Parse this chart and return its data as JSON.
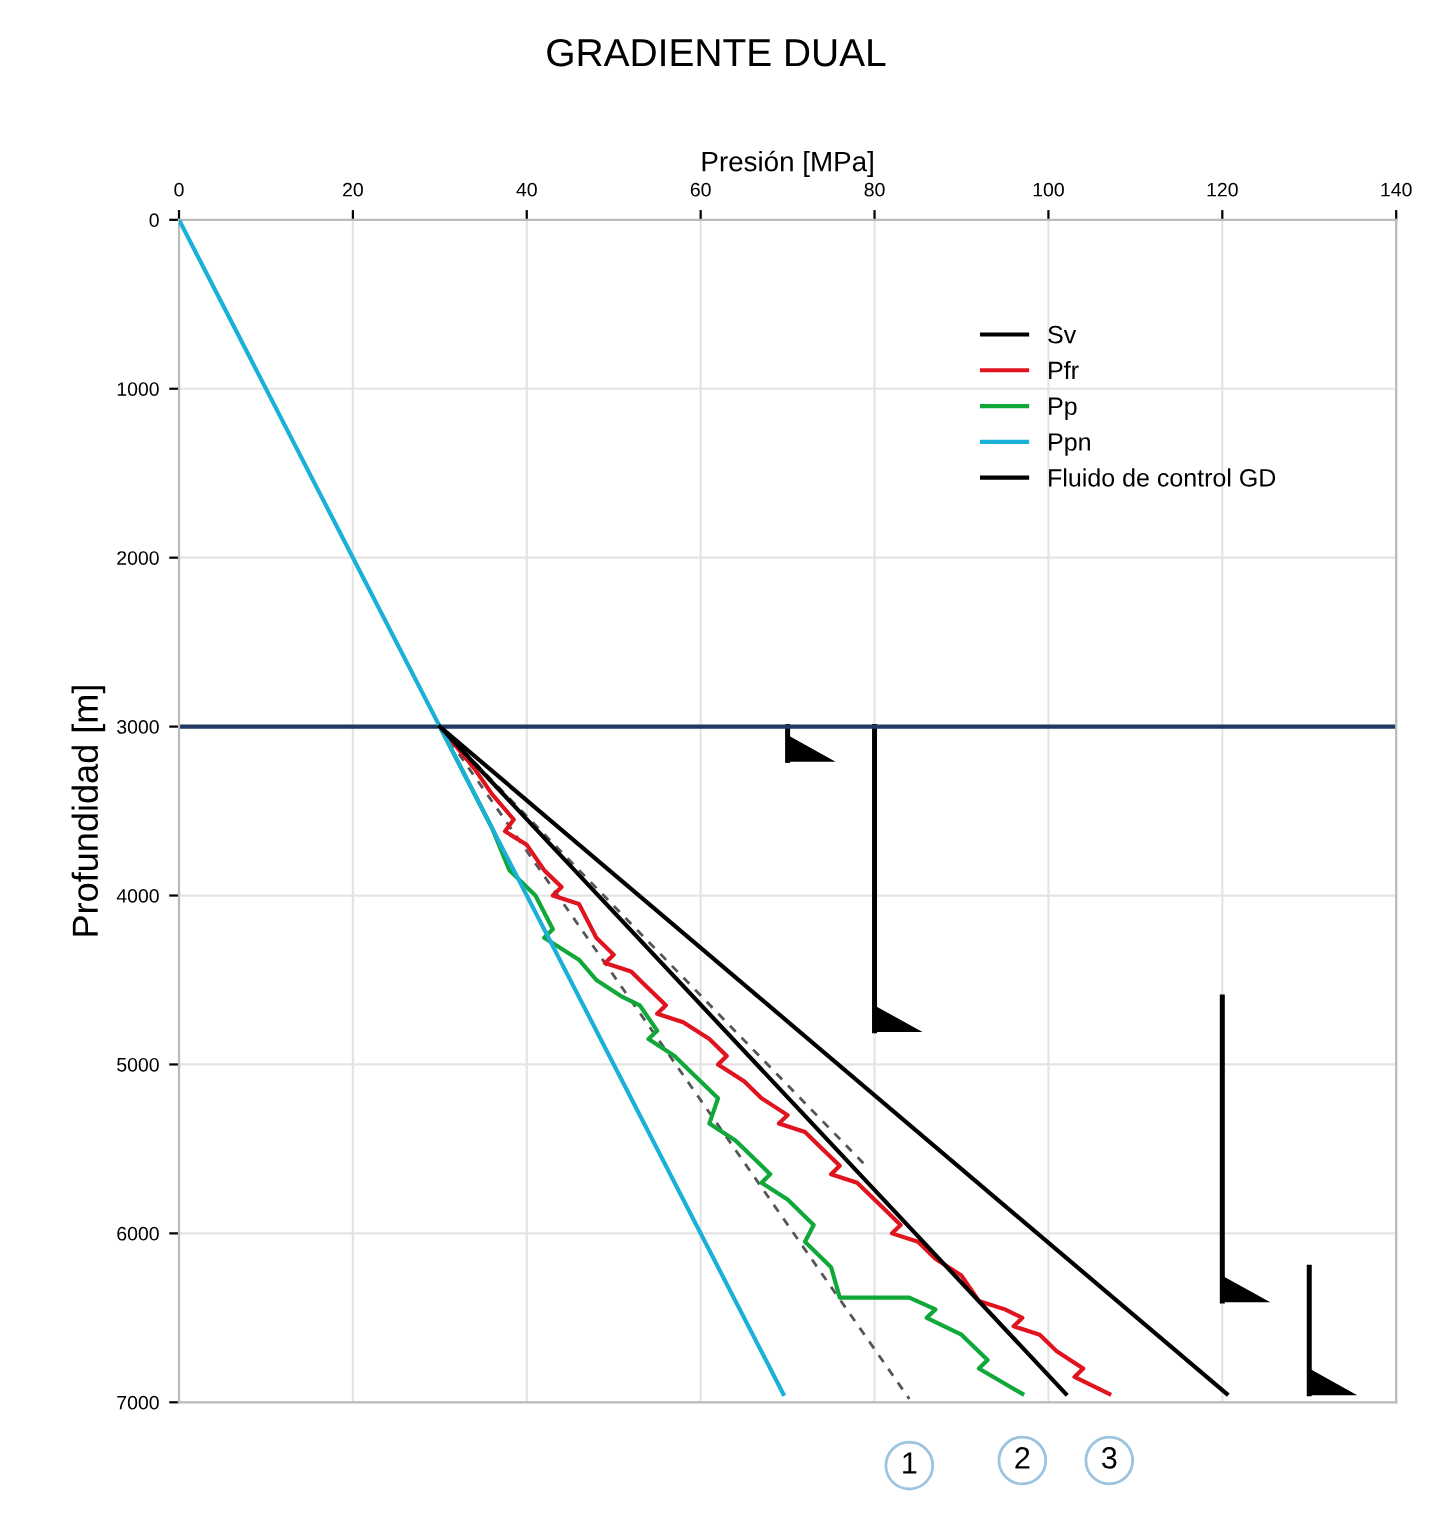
{
  "chart_data": {
    "type": "line",
    "title": "GRADIENTE DUAL",
    "xlabel": "Presión [MPa]",
    "ylabel": "Profundidad [m]",
    "xlim": [
      0,
      140
    ],
    "xticks": [
      0,
      20,
      40,
      60,
      80,
      100,
      120,
      140
    ],
    "ylim": [
      7000,
      0
    ],
    "yticks": [
      0,
      1000,
      2000,
      3000,
      4000,
      5000,
      6000,
      7000
    ],
    "grid": true,
    "legend": "top right",
    "marker": "none",
    "series": [
      {
        "name": "Sv",
        "color": "#000000",
        "x": [
          30,
          120.5
        ],
        "values": [
          3000,
          6950
        ]
      },
      {
        "name": "Pfr",
        "color": "#e0141e",
        "x": [
          30,
          34,
          36,
          38.5,
          37.5,
          40,
          42,
          44,
          43,
          46,
          48,
          50,
          49,
          52,
          54,
          56,
          55,
          58,
          61,
          63,
          62,
          65,
          67,
          70,
          69,
          72,
          74,
          76,
          75,
          78,
          81,
          83,
          82,
          85,
          87,
          90,
          92,
          95,
          97,
          96,
          99,
          101,
          104,
          103,
          107
        ],
        "values": [
          3000,
          3250,
          3400,
          3550,
          3620,
          3700,
          3850,
          3950,
          4000,
          4050,
          4250,
          4350,
          4400,
          4450,
          4550,
          4650,
          4700,
          4750,
          4850,
          4950,
          5000,
          5100,
          5200,
          5300,
          5350,
          5400,
          5500,
          5600,
          5650,
          5700,
          5850,
          5950,
          6000,
          6050,
          6150,
          6250,
          6400,
          6450,
          6500,
          6550,
          6600,
          6700,
          6800,
          6850,
          6950
        ]
      },
      {
        "name": "Pp",
        "color": "#10a838",
        "x": [
          30,
          33,
          36,
          38,
          41,
          43,
          42,
          46,
          48,
          51,
          53,
          55,
          54,
          57,
          59,
          62,
          61,
          64,
          66,
          68,
          67,
          70,
          73,
          72,
          75,
          76,
          84,
          87,
          86,
          90,
          93,
          92,
          97
        ],
        "values": [
          3000,
          3300,
          3600,
          3850,
          4000,
          4200,
          4250,
          4380,
          4500,
          4600,
          4650,
          4800,
          4850,
          4950,
          5050,
          5200,
          5350,
          5450,
          5550,
          5650,
          5700,
          5800,
          5950,
          6050,
          6200,
          6380,
          6380,
          6450,
          6500,
          6600,
          6750,
          6800,
          6950
        ]
      },
      {
        "name": "Ppn",
        "color": "#1ab0d8",
        "x": [
          0,
          69.5
        ],
        "values": [
          0,
          6950
        ]
      },
      {
        "name": "Fluido de control GD",
        "color": "#000000",
        "x": [
          30,
          102
        ],
        "values": [
          3000,
          6950
        ]
      },
      {
        "color": "#555555",
        "line_style": "dashed",
        "x": [
          30,
          84
        ],
        "values": [
          3000,
          6980
        ]
      },
      {
        "color": "#555555",
        "line_style": "dashed",
        "x": [
          30,
          79
        ],
        "values": [
          3000,
          5600
        ]
      },
      {
        "color": "#000000",
        "x": [
          70,
          70
        ],
        "values": [
          3000,
          3200
        ]
      },
      {
        "color": "#000000",
        "x": [
          80,
          80
        ],
        "values": [
          3000,
          4800
        ]
      },
      {
        "color": "#000000",
        "x": [
          120,
          120
        ],
        "values": [
          4600,
          6400
        ]
      },
      {
        "color": "#000000",
        "x": [
          130,
          130
        ],
        "values": [
          6200,
          6950
        ]
      }
    ],
    "ref_lines": [
      {
        "axis": "y",
        "value": 3000,
        "color": "#1f3864"
      }
    ],
    "annotations": [
      {
        "text": "1",
        "x": 84,
        "y": 6980
      },
      {
        "text": "2",
        "x": 97,
        "y": 6950
      },
      {
        "text": "3",
        "x": 107,
        "y": 6950
      }
    ]
  }
}
